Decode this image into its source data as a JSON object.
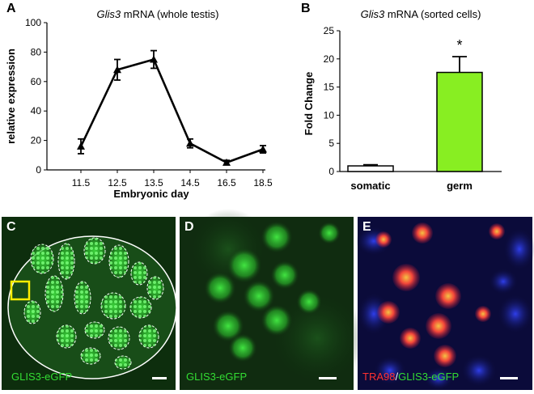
{
  "panels": {
    "a": "A",
    "b": "B",
    "c": "C",
    "d": "D",
    "e": "E"
  },
  "chart_data": [
    {
      "type": "line",
      "title_gene": "Glis3",
      "title_rest": " mRNA (whole testis)",
      "xlabel": "Embryonic day",
      "ylabel": "relative expression",
      "categories": [
        "11.5",
        "12.5",
        "13.5",
        "14.5",
        "16.5",
        "18.5"
      ],
      "values": [
        16,
        68,
        75,
        18,
        5,
        14
      ],
      "errors": [
        5,
        7,
        6,
        3,
        1.5,
        2.5
      ],
      "ylim": [
        0,
        100
      ],
      "yticks": [
        "0",
        "20",
        "40",
        "60",
        "80",
        "100"
      ],
      "grid": false
    },
    {
      "type": "bar",
      "title_gene": "Glis3",
      "title_rest": " mRNA (sorted cells)",
      "xlabel": "",
      "ylabel": "Fold Change",
      "categories": [
        "somatic",
        "germ"
      ],
      "values": [
        1.0,
        17.6
      ],
      "errors": [
        0.2,
        2.8
      ],
      "colors": [
        "#ffffff",
        "#88ee22"
      ],
      "significance": "*",
      "ylim": [
        0,
        25
      ],
      "yticks": [
        "0",
        "5",
        "10",
        "15",
        "20",
        "25"
      ],
      "grid": false
    }
  ],
  "images": {
    "c_caption": "GLIS3-eGFP",
    "d_caption": "GLIS3-eGFP",
    "e_caption_red": "TRA98",
    "e_caption_slash": "/",
    "e_caption_green": "GLIS3-eGFP",
    "colors": {
      "gfp": "#33dd33",
      "tra98": "#ff3030",
      "dapi": "#2233ee",
      "box": "#ffee00"
    }
  }
}
